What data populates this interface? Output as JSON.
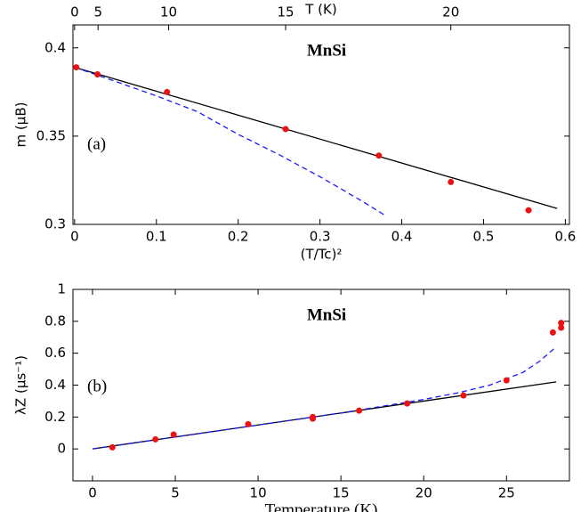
{
  "chart_data": [
    {
      "type": "scatter",
      "panel_label": "(a)",
      "annotation": "MnSi",
      "xlabel": "(T/Tc)²",
      "ylabel": "m (μB)",
      "x2label": "T (K)",
      "xlim": [
        -0.002,
        0.605
      ],
      "ylim": [
        0.3,
        0.413
      ],
      "xticks": [
        0,
        0.1,
        0.2,
        0.3,
        0.4,
        0.5,
        0.6
      ],
      "yticks": [
        0.3,
        0.35,
        0.4
      ],
      "x2ticks": [
        0,
        {
          "value": 0.0287,
          "label": "5"
        },
        {
          "value": 0.115,
          "label": "10"
        },
        {
          "value": 0.258,
          "label": "15"
        },
        {
          "value": 0.46,
          "label": "20"
        }
      ],
      "series": [
        {
          "style": "solid",
          "color": "#000000",
          "x": [
            0,
            0.59
          ],
          "values": [
            0.389,
            0.309
          ]
        },
        {
          "style": "dashed",
          "color": "#1a1aff",
          "x": [
            0,
            0.05,
            0.1,
            0.15,
            0.2,
            0.25,
            0.3,
            0.35,
            0.38
          ],
          "values": [
            0.389,
            0.381,
            0.3728,
            0.3639,
            0.351,
            0.3395,
            0.327,
            0.3136,
            0.305
          ]
        },
        {
          "style": "markers",
          "color": "#ee1111",
          "x": [
            0.002,
            0.028,
            0.113,
            0.258,
            0.372,
            0.46,
            0.555
          ],
          "values": [
            0.389,
            0.385,
            0.375,
            0.354,
            0.339,
            0.324,
            0.308
          ]
        }
      ]
    },
    {
      "type": "scatter",
      "panel_label": "(b)",
      "annotation": "MnSi",
      "xlabel": "Temperature (K)",
      "ylabel": "λZ (μs⁻¹)",
      "xlim": [
        -1.18,
        28.8
      ],
      "ylim": [
        -0.2,
        1.0
      ],
      "xticks": [
        0,
        5,
        10,
        15,
        20,
        25
      ],
      "yticks": [
        0,
        0.2,
        0.4,
        0.6,
        0.8,
        1
      ],
      "series": [
        {
          "style": "solid",
          "color": "#000000",
          "x": [
            0,
            28
          ],
          "values": [
            0,
            0.42
          ]
        },
        {
          "style": "dashed",
          "color": "#1a1aff",
          "x": [
            0,
            5,
            10,
            15,
            20,
            22,
            24,
            26,
            27,
            28
          ],
          "values": [
            0,
            0.075,
            0.15,
            0.225,
            0.31,
            0.35,
            0.4,
            0.48,
            0.55,
            0.64
          ]
        },
        {
          "style": "markers",
          "color": "#ee1111",
          "x": [
            1.2,
            3.8,
            4.9,
            9.4,
            13.3,
            13.3,
            16.1,
            19,
            22.4,
            25,
            27.8,
            28.3,
            28.3
          ],
          "values": [
            0.01,
            0.06,
            0.09,
            0.155,
            0.19,
            0.2,
            0.24,
            0.285,
            0.335,
            0.43,
            0.73,
            0.76,
            0.79
          ]
        }
      ]
    }
  ]
}
